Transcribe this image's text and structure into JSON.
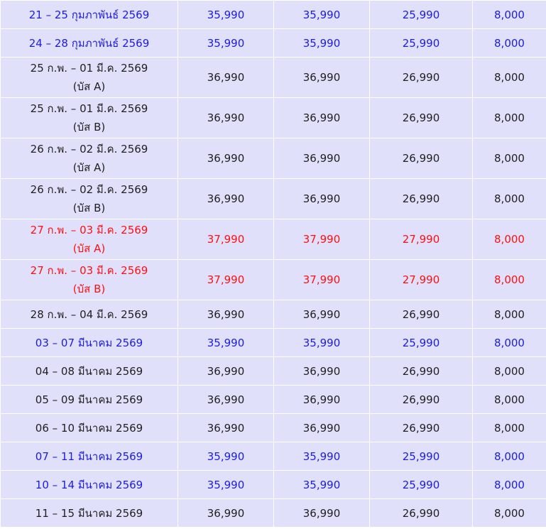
{
  "colors": {
    "cell_background": "#e0e0fb",
    "black": "#1f1f1f",
    "blue": "#1c1ce0",
    "red": "#ff1010"
  },
  "rows": [
    {
      "date": "21 – 25 กุมภาพันธ์ 2569",
      "bus": "",
      "c1": "35,990",
      "c2": "35,990",
      "c3": "25,990",
      "c4": "8,000",
      "color": "blue"
    },
    {
      "date": "24 – 28 กุมภาพันธ์ 2569",
      "bus": "",
      "c1": "35,990",
      "c2": "35,990",
      "c3": "25,990",
      "c4": "8,000",
      "color": "blue"
    },
    {
      "date": "25 ก.พ. – 01 มี.ค. 2569",
      "bus": "(บัส A)",
      "c1": "36,990",
      "c2": "36,990",
      "c3": "26,990",
      "c4": "8,000",
      "color": "black"
    },
    {
      "date": "25 ก.พ. – 01 มี.ค. 2569",
      "bus": "(บัส B)",
      "c1": "36,990",
      "c2": "36,990",
      "c3": "26,990",
      "c4": "8,000",
      "color": "black"
    },
    {
      "date": "26 ก.พ. – 02 มี.ค. 2569",
      "bus": "(บัส A)",
      "c1": "36,990",
      "c2": "36,990",
      "c3": "26,990",
      "c4": "8,000",
      "color": "black"
    },
    {
      "date": "26 ก.พ. – 02 มี.ค. 2569",
      "bus": "(บัส B)",
      "c1": "36,990",
      "c2": "36,990",
      "c3": "26,990",
      "c4": "8,000",
      "color": "black"
    },
    {
      "date": "27 ก.พ. – 03 มี.ค. 2569",
      "bus": "(บัส A)",
      "c1": "37,990",
      "c2": "37,990",
      "c3": "27,990",
      "c4": "8,000",
      "color": "red"
    },
    {
      "date": "27 ก.พ. – 03 มี.ค. 2569",
      "bus": "(บัส B)",
      "c1": "37,990",
      "c2": "37,990",
      "c3": "27,990",
      "c4": "8,000",
      "color": "red"
    },
    {
      "date": "28 ก.พ. – 04 มี.ค. 2569",
      "bus": "",
      "c1": "36,990",
      "c2": "36,990",
      "c3": "26,990",
      "c4": "8,000",
      "color": "black"
    },
    {
      "date": "03 – 07 มีนาคม 2569",
      "bus": "",
      "c1": "35,990",
      "c2": "35,990",
      "c3": "25,990",
      "c4": "8,000",
      "color": "blue"
    },
    {
      "date": "04 – 08 มีนาคม 2569",
      "bus": "",
      "c1": "36,990",
      "c2": "36,990",
      "c3": "26,990",
      "c4": "8,000",
      "color": "black"
    },
    {
      "date": "05 – 09 มีนาคม 2569",
      "bus": "",
      "c1": "36,990",
      "c2": "36,990",
      "c3": "26,990",
      "c4": "8,000",
      "color": "black"
    },
    {
      "date": "06 – 10 มีนาคม 2569",
      "bus": "",
      "c1": "36,990",
      "c2": "36,990",
      "c3": "26,990",
      "c4": "8,000",
      "color": "black"
    },
    {
      "date": "07 – 11 มีนาคม 2569",
      "bus": "",
      "c1": "35,990",
      "c2": "35,990",
      "c3": "25,990",
      "c4": "8,000",
      "color": "blue"
    },
    {
      "date": "10 – 14 มีนาคม 2569",
      "bus": "",
      "c1": "35,990",
      "c2": "35,990",
      "c3": "25,990",
      "c4": "8,000",
      "color": "blue"
    },
    {
      "date": "11 – 15 มีนาคม 2569",
      "bus": "",
      "c1": "36,990",
      "c2": "36,990",
      "c3": "26,990",
      "c4": "8,000",
      "color": "black"
    }
  ]
}
